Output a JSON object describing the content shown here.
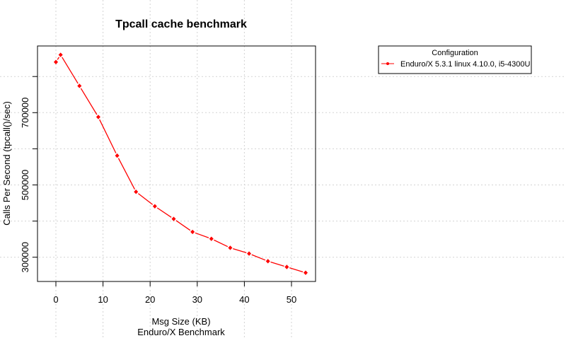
{
  "chart_data": {
    "type": "line",
    "title": "Tpcall cache benchmark",
    "xlabel": "Msg Size (KB)",
    "subtitle": "Enduro/X Benchmark",
    "ylabel": "Calls Per Second (tpcall()/sec)",
    "xlim": [
      -2,
      55
    ],
    "ylim": [
      230000,
      880000
    ],
    "x_ticks": [
      0,
      10,
      20,
      30,
      40,
      50
    ],
    "y_ticks": [
      300000,
      400000,
      500000,
      600000,
      700000,
      800000
    ],
    "y_tick_labels": [
      "300000",
      "",
      "500000",
      "",
      "700000",
      ""
    ],
    "grid": true,
    "legend": {
      "title": "Configuration",
      "placement": "top-right, outside plot"
    },
    "series": [
      {
        "name": "Enduro/X 5.3.1 linux 4.10.0, i5-4300U",
        "color": "#ff0000",
        "x": [
          0,
          1,
          5,
          9,
          13,
          17,
          21,
          25,
          29,
          33,
          37,
          41,
          45,
          49,
          53
        ],
        "y": [
          840000,
          860000,
          774000,
          688000,
          581000,
          481000,
          441000,
          406000,
          370000,
          351000,
          326000,
          310000,
          289000,
          273000,
          257000
        ]
      }
    ]
  }
}
